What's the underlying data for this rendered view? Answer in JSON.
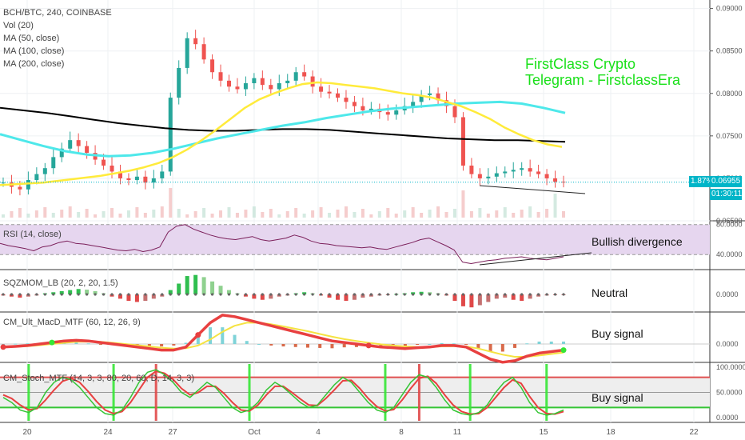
{
  "header": {
    "symbol_line": "BCH/BTC, 240, COINBASE",
    "indicators": [
      "Vol (20)",
      "MA (50, close)",
      "MA (100, close)",
      "MA (200, close)"
    ]
  },
  "branding": {
    "line1": "FirstClass Crypto",
    "line2": "Telegram - FirstclassEra"
  },
  "price_badge": {
    "change": "1.87%",
    "last": "0.06955",
    "timer": "01:30:11"
  },
  "panes": {
    "rsi_label": "RSI (14, close)",
    "sqz_label": "SQZMOM_LB (20, 2, 20, 1.5)",
    "macd_label": "CM_Ult_MacD_MTF (60, 12, 26, 9)",
    "stoch_label": "CM_Stoch_MTF (14, 3, 3, 80, 20, 60, D, 14, 3, 3)"
  },
  "annotations": {
    "rsi": "Bullish divergence",
    "sqz": "Neutral",
    "macd": "Buy signal",
    "stoch": "Buy signal"
  },
  "colors": {
    "up": "#26a69a",
    "down": "#ef5350",
    "ma50": "#ffeb3b",
    "ma100": "#4ee8ea",
    "ma200": "#000000",
    "rsi_line": "#7b1f5a",
    "rsi_band": "#e6d6ef",
    "brand_green": "#19e019",
    "price_blue": "#00b5c8"
  },
  "chart_data": [
    {
      "type": "candlestick",
      "pane": "price",
      "title": "BCH/BTC, 240, COINBASE",
      "ylim": [
        0.065,
        0.091
      ],
      "y_ticks": [
        "0.09000",
        "0.08500",
        "0.08000",
        "0.07500",
        "0.07000",
        "0.06500"
      ],
      "x_ticks": [
        "20",
        "24",
        "27",
        "Oct",
        "4",
        "8",
        "11",
        "15",
        "18",
        "22"
      ],
      "close_series": [
        0.0695,
        0.069,
        0.0687,
        0.0698,
        0.0705,
        0.0712,
        0.0725,
        0.0735,
        0.0745,
        0.0738,
        0.073,
        0.0722,
        0.0715,
        0.0708,
        0.07,
        0.0698,
        0.0702,
        0.0695,
        0.07,
        0.0708,
        0.0795,
        0.083,
        0.0865,
        0.0858,
        0.084,
        0.0825,
        0.0815,
        0.0808,
        0.0805,
        0.0812,
        0.0818,
        0.081,
        0.0805,
        0.0812,
        0.0815,
        0.0825,
        0.082,
        0.0808,
        0.0802,
        0.08,
        0.0795,
        0.079,
        0.0785,
        0.078,
        0.0782,
        0.0778,
        0.0775,
        0.078,
        0.0785,
        0.079,
        0.0798,
        0.08,
        0.0792,
        0.0785,
        0.0772,
        0.0715,
        0.0705,
        0.07,
        0.0702,
        0.0706,
        0.0708,
        0.071,
        0.0712,
        0.0708,
        0.0705,
        0.07,
        0.0696,
        0.06955
      ],
      "ma50": [
        0.0692,
        0.0693,
        0.0694,
        0.0695,
        0.0697,
        0.0699,
        0.0701,
        0.0703,
        0.0706,
        0.0709,
        0.0713,
        0.0718,
        0.0725,
        0.0734,
        0.0745,
        0.0757,
        0.077,
        0.0783,
        0.0793,
        0.08,
        0.0806,
        0.0811,
        0.0813,
        0.0812,
        0.081,
        0.0808,
        0.0806,
        0.0803,
        0.08,
        0.0798,
        0.0795,
        0.079,
        0.0785,
        0.0778,
        0.077,
        0.076,
        0.0752,
        0.0745,
        0.074,
        0.0737
      ],
      "ma100": [
        0.0752,
        0.0745,
        0.0738,
        0.0732,
        0.0728,
        0.0726,
        0.0727,
        0.073,
        0.0735,
        0.0741,
        0.0747,
        0.0752,
        0.0757,
        0.0762,
        0.0766,
        0.0771,
        0.0775,
        0.0779,
        0.0782,
        0.0784,
        0.0786,
        0.0788,
        0.0789,
        0.079,
        0.0788,
        0.0783,
        0.0777
      ],
      "ma200": [
        0.0783,
        0.078,
        0.0777,
        0.0773,
        0.0769,
        0.0765,
        0.0762,
        0.0759,
        0.0757,
        0.0756,
        0.0756,
        0.0757,
        0.0758,
        0.0758,
        0.0757,
        0.0755,
        0.0753,
        0.0751,
        0.0749,
        0.0747,
        0.0746,
        0.0745,
        0.0745,
        0.0744,
        0.0743
      ]
    },
    {
      "type": "line",
      "pane": "rsi",
      "title": "RSI (14, close)",
      "ylim": [
        20,
        85
      ],
      "y_ticks": [
        "80.0000",
        "40.0000"
      ],
      "values": [
        55,
        52,
        50,
        48,
        45,
        50,
        52,
        56,
        58,
        55,
        54,
        52,
        50,
        48,
        46,
        45,
        47,
        44,
        46,
        50,
        70,
        78,
        80,
        74,
        70,
        66,
        63,
        61,
        60,
        62,
        64,
        60,
        58,
        60,
        62,
        66,
        63,
        58,
        55,
        54,
        52,
        51,
        50,
        49,
        50,
        48,
        47,
        50,
        53,
        56,
        60,
        62,
        57,
        52,
        46,
        30,
        28,
        30,
        32,
        33,
        35,
        36,
        37,
        35,
        34,
        33,
        35,
        37
      ]
    },
    {
      "type": "bar",
      "pane": "sqz",
      "title": "SQZMOM_LB (20, 2, 20, 1.5)",
      "ylim": [
        -1,
        1
      ],
      "y_ticks": [
        "0.0000"
      ],
      "values": [
        -0.05,
        -0.1,
        -0.15,
        -0.1,
        -0.05,
        0.05,
        0.1,
        0.15,
        0.2,
        0.25,
        0.22,
        0.15,
        0.05,
        -0.1,
        -0.2,
        -0.3,
        -0.35,
        -0.3,
        -0.2,
        -0.1,
        0.2,
        0.5,
        0.85,
        0.9,
        0.8,
        0.6,
        0.4,
        0.2,
        0.05,
        -0.1,
        -0.2,
        -0.25,
        -0.2,
        -0.1,
        -0.05,
        0.05,
        0.1,
        0.05,
        -0.05,
        -0.15,
        -0.25,
        -0.3,
        -0.25,
        -0.15,
        -0.1,
        -0.05,
        -0.02,
        0.02,
        0.05,
        0.1,
        0.12,
        0.1,
        0.05,
        -0.05,
        -0.3,
        -0.55,
        -0.6,
        -0.5,
        -0.35,
        -0.2,
        -0.15,
        -0.25,
        -0.3,
        -0.2,
        -0.1,
        -0.05,
        -0.03,
        -0.02
      ]
    },
    {
      "type": "line",
      "pane": "macd",
      "title": "CM_Ult_MacD_MTF (60, 12, 26, 9)",
      "ylim": [
        -1,
        1
      ],
      "y_ticks": [
        "0.0000"
      ],
      "macd": [
        -0.1,
        -0.08,
        -0.05,
        0,
        0.05,
        0.1,
        0.12,
        0.1,
        0.05,
        0,
        -0.05,
        -0.1,
        -0.15,
        -0.2,
        -0.2,
        -0.1,
        0.3,
        0.7,
        0.95,
        0.9,
        0.8,
        0.7,
        0.6,
        0.5,
        0.4,
        0.3,
        0.2,
        0.1,
        0.05,
        0,
        -0.05,
        -0.1,
        -0.12,
        -0.15,
        -0.12,
        -0.1,
        -0.05,
        -0.05,
        -0.1,
        -0.3,
        -0.5,
        -0.6,
        -0.55,
        -0.4,
        -0.3,
        -0.25,
        -0.2
      ],
      "signal": [
        -0.1,
        -0.09,
        -0.07,
        -0.04,
        0,
        0.04,
        0.07,
        0.08,
        0.07,
        0.04,
        0,
        -0.04,
        -0.08,
        -0.12,
        -0.15,
        -0.14,
        -0.05,
        0.15,
        0.4,
        0.6,
        0.7,
        0.7,
        0.65,
        0.58,
        0.5,
        0.42,
        0.33,
        0.24,
        0.16,
        0.1,
        0.04,
        -0.01,
        -0.05,
        -0.08,
        -0.1,
        -0.1,
        -0.08,
        -0.07,
        -0.08,
        -0.15,
        -0.25,
        -0.35,
        -0.42,
        -0.42,
        -0.38,
        -0.33,
        -0.28
      ]
    },
    {
      "type": "line",
      "pane": "stoch",
      "title": "CM_Stoch_MTF (14, 3, 3, 80, 20, 60, D, 14, 3, 3)",
      "ylim": [
        0,
        100
      ],
      "y_ticks": [
        "100.0000",
        "50.0000",
        "0.0000"
      ],
      "k": [
        40,
        30,
        15,
        10,
        20,
        50,
        70,
        80,
        75,
        60,
        40,
        20,
        8,
        5,
        15,
        40,
        70,
        90,
        95,
        85,
        70,
        50,
        40,
        55,
        70,
        60,
        40,
        20,
        10,
        15,
        30,
        55,
        70,
        60,
        45,
        30,
        20,
        25,
        45,
        65,
        80,
        70,
        50,
        30,
        15,
        10,
        20,
        45,
        70,
        85,
        80,
        60,
        35,
        15,
        8,
        5,
        10,
        25,
        50,
        70,
        80,
        60,
        30,
        10,
        5,
        8,
        15
      ],
      "d": [
        45,
        38,
        25,
        15,
        18,
        35,
        55,
        72,
        78,
        70,
        52,
        32,
        15,
        8,
        12,
        30,
        55,
        80,
        92,
        88,
        76,
        58,
        45,
        50,
        62,
        62,
        48,
        30,
        15,
        13,
        25,
        45,
        62,
        62,
        50,
        37,
        25,
        24,
        38,
        55,
        73,
        74,
        58,
        38,
        22,
        13,
        16,
        35,
        58,
        78,
        82,
        68,
        45,
        25,
        12,
        7,
        8,
        20,
        40,
        60,
        75,
        68,
        42,
        20,
        8,
        7,
        12
      ]
    }
  ]
}
